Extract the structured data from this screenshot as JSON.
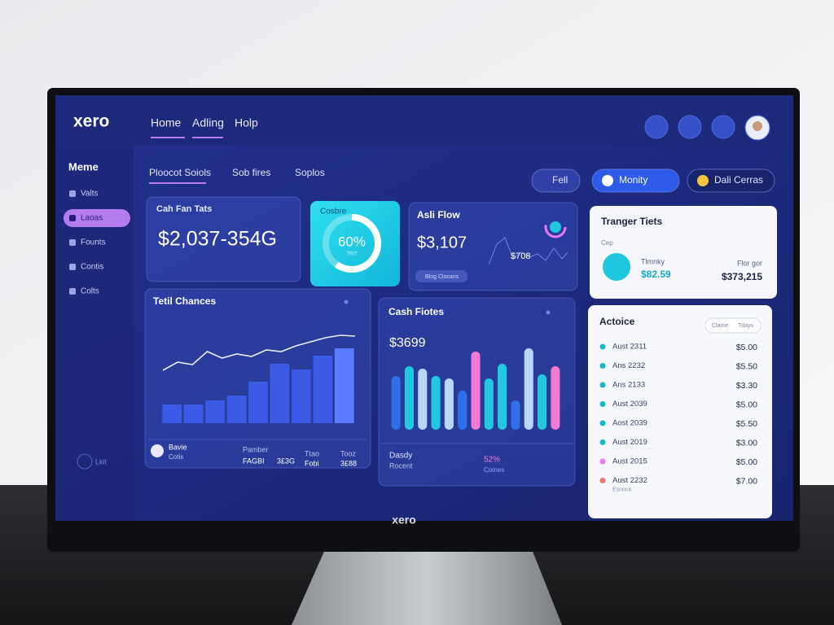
{
  "header": {
    "logo": "xero",
    "nav": [
      "Home",
      "Adling",
      "Holp"
    ]
  },
  "sidebar": {
    "title": "Meme",
    "items": [
      "Valts",
      "Laoas",
      "Founts",
      "Contis",
      "Colts"
    ],
    "active": 1,
    "footer": "Lkit"
  },
  "tabs": [
    "Ploocot Soiols",
    "Sob fires",
    "Soplos"
  ],
  "buttons": [
    "Fell",
    "Monity",
    "Dali Cerras"
  ],
  "card_cash": {
    "title": "Cah Fan Tats",
    "value": "$2,037-354G"
  },
  "card_donut": {
    "title": "Cosbre",
    "label": "60%",
    "value": 60,
    "sub": "TRIT"
  },
  "card_flow": {
    "title": "Asli Flow",
    "value": "$3,107",
    "secondary": "$708",
    "badge": "Blog Clocans"
  },
  "card_targets": {
    "title": "Tranger Tiets",
    "caption": "Cep",
    "left_label": "Tlmnky",
    "left_value": "$82.59",
    "right_label": "Flor gor",
    "right_value": "$373,215"
  },
  "charts": [
    {
      "type": "bar",
      "title": "Tetil Chances",
      "color": "#3b5be6",
      "highlight_color": "#5b7cff",
      "values": [
        23,
        23,
        28,
        34,
        51,
        73,
        66,
        83,
        92
      ],
      "line": [
        65,
        75,
        72,
        88,
        80,
        85,
        82,
        90,
        88,
        95,
        100,
        105,
        108,
        107
      ],
      "line_color": "#e8ecff",
      "ylim": [
        0,
        120
      ]
    },
    {
      "type": "bar",
      "title": "Cash Fiotes",
      "value": "$3699",
      "values": [
        66,
        78,
        75,
        66,
        63,
        48,
        96,
        63,
        81,
        36,
        100,
        68,
        78
      ],
      "colors": [
        "#2f6fe8",
        "#22c7e0",
        "#b9d6ff",
        "#22c7e0",
        "#b9d6ff",
        "#2f6fe8",
        "#f07ad4",
        "#22c7e0",
        "#22c7e0",
        "#2f6fe8",
        "#b9d6ff",
        "#22c7e0",
        "#f07ad4"
      ],
      "ylim": [
        0,
        110
      ]
    }
  ],
  "chart_footer_left": {
    "title": "Bavie",
    "sub": "Cotis",
    "cols": [
      [
        "Pamber",
        "FAGBI",
        "3£3G"
      ],
      [
        "Ttao",
        "Fobi"
      ],
      [
        "Tooz",
        "3£88"
      ]
    ]
  },
  "chart_footer_right": {
    "left": "Dasdy",
    "left_sub": "Rocent",
    "right": "52%",
    "right_sub": "Comes"
  },
  "activity": {
    "title": "Actoice",
    "toggle": [
      "Clame",
      "Tdays"
    ],
    "rows": [
      {
        "name": "Aust 2311",
        "amount": "$5.00",
        "color": "#14b8c8"
      },
      {
        "name": "Ans 2232",
        "amount": "$5.50",
        "color": "#14b8c8"
      },
      {
        "name": "Ans 2133",
        "amount": "$3.30",
        "color": "#14b8c8"
      },
      {
        "name": "Aust 2039",
        "amount": "$5.00",
        "color": "#14b8c8"
      },
      {
        "name": "Aost 2039",
        "amount": "$5.50",
        "color": "#14b8c8"
      },
      {
        "name": "Aust 2019",
        "amount": "$3.00",
        "color": "#14b8c8"
      },
      {
        "name": "Aust 2015",
        "amount": "$5.00",
        "color": "#e879f9"
      },
      {
        "name": "Aust 2232",
        "amount": "$7.00",
        "color": "#f87171",
        "sub": "Esnoce"
      }
    ]
  },
  "monitor_brand": "xero"
}
